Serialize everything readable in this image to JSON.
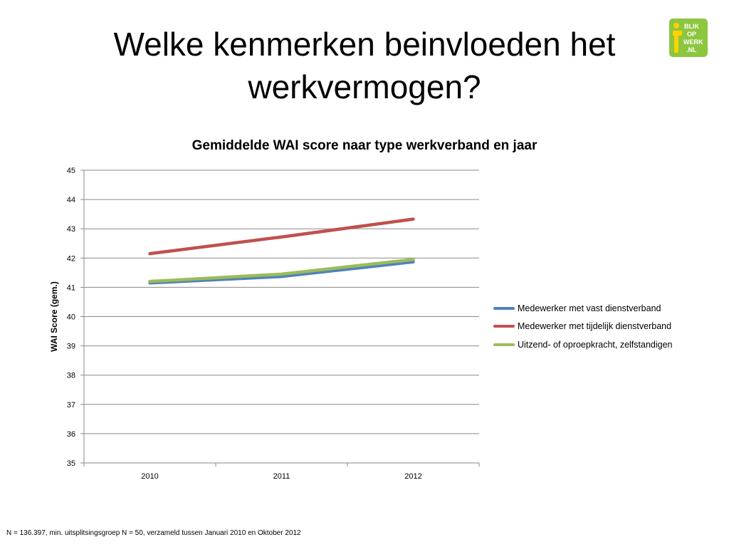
{
  "slide": {
    "title_line1": "Welke kenmerken beinvloeden het",
    "title_line2": "werkvermogen?",
    "footnote": "N = 136.397, min. uitsplitsingsgroep N = 50, verzameld tussen Januari 2010 en Oktober 2012"
  },
  "logo": {
    "line1": "BLIK",
    "line2": "OP",
    "line3": "WERK",
    "line4": ".NL",
    "colors": {
      "background": "#8DC63F",
      "figure": "#FFD200",
      "text": "#FFFFFF"
    }
  },
  "chart_data": {
    "type": "line",
    "title": "Gemiddelde WAI score naar type werkverband en jaar",
    "xlabel": "",
    "ylabel": "WAI Score (gem.)",
    "categories": [
      "2010",
      "2011",
      "2012"
    ],
    "ylim": [
      35,
      45
    ],
    "yticks": [
      "35",
      "36",
      "37",
      "38",
      "39",
      "40",
      "41",
      "42",
      "43",
      "44",
      "45"
    ],
    "grid": true,
    "legend_position": "right",
    "series": [
      {
        "name": "Medewerker met vast dienstverband",
        "values": [
          41.15,
          41.37,
          41.87
        ],
        "color": "#4F81BD"
      },
      {
        "name": "Medewerker met tijdelijk dienstverband",
        "values": [
          42.15,
          42.72,
          43.33
        ],
        "color": "#C0504D"
      },
      {
        "name": "Uitzend- of oproepkracht, zelfstandigen",
        "values": [
          41.2,
          41.45,
          41.95
        ],
        "color": "#9BBB59"
      }
    ]
  }
}
